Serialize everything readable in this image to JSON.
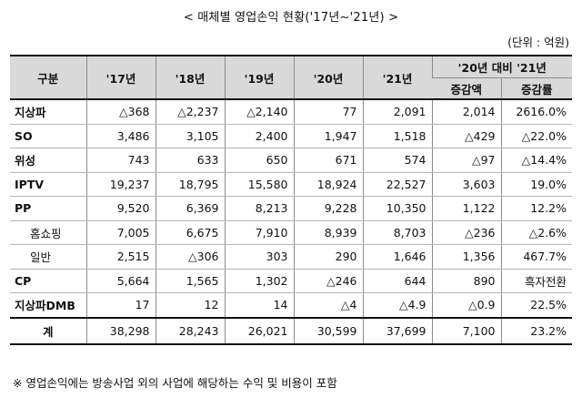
{
  "title": "< 매체별 영업손익 현황('17년~'21년) >",
  "unit": "(단위 : 억원)",
  "table": {
    "header": {
      "category": "구분",
      "years": [
        "'17년",
        "'18년",
        "'19년",
        "'20년",
        "'21년"
      ],
      "compare_group": "'20년 대비 '21년",
      "compare_cols": [
        "증감액",
        "증감률"
      ]
    },
    "rows": [
      {
        "label": "지상파",
        "values": [
          "△368",
          "△2,237",
          "△2,140",
          "77",
          "2,091",
          "2,014",
          "2616.0%"
        ]
      },
      {
        "label": "SO",
        "values": [
          "3,486",
          "3,105",
          "2,400",
          "1,947",
          "1,518",
          "△429",
          "△22.0%"
        ]
      },
      {
        "label": "위성",
        "values": [
          "743",
          "633",
          "650",
          "671",
          "574",
          "△97",
          "△14.4%"
        ]
      },
      {
        "label": "IPTV",
        "values": [
          "19,237",
          "18,795",
          "15,580",
          "18,924",
          "22,527",
          "3,603",
          "19.0%"
        ]
      },
      {
        "label": "PP",
        "values": [
          "9,520",
          "6,369",
          "8,213",
          "9,228",
          "10,350",
          "1,122",
          "12.2%"
        ]
      },
      {
        "label": "홈쇼핑",
        "values": [
          "7,005",
          "6,675",
          "7,910",
          "8,939",
          "8,703",
          "△236",
          "△2.6%"
        ]
      },
      {
        "label": "일반",
        "values": [
          "2,515",
          "△306",
          "303",
          "290",
          "1,646",
          "1,356",
          "467.7%"
        ]
      },
      {
        "label": "CP",
        "values": [
          "5,664",
          "1,565",
          "1,302",
          "△246",
          "644",
          "890",
          "흑자전환"
        ]
      },
      {
        "label": "지상파DMB",
        "values": [
          "17",
          "12",
          "14",
          "△4",
          "△4.9",
          "△0.9",
          "22.5%"
        ]
      }
    ],
    "total": {
      "label": "계",
      "values": [
        "38,298",
        "28,243",
        "26,021",
        "30,599",
        "37,699",
        "7,100",
        "23.2%"
      ]
    }
  },
  "note": "※ 영업손익에는 방송사업 외의 사업에 해당하는 수익 및 비용이 포함"
}
